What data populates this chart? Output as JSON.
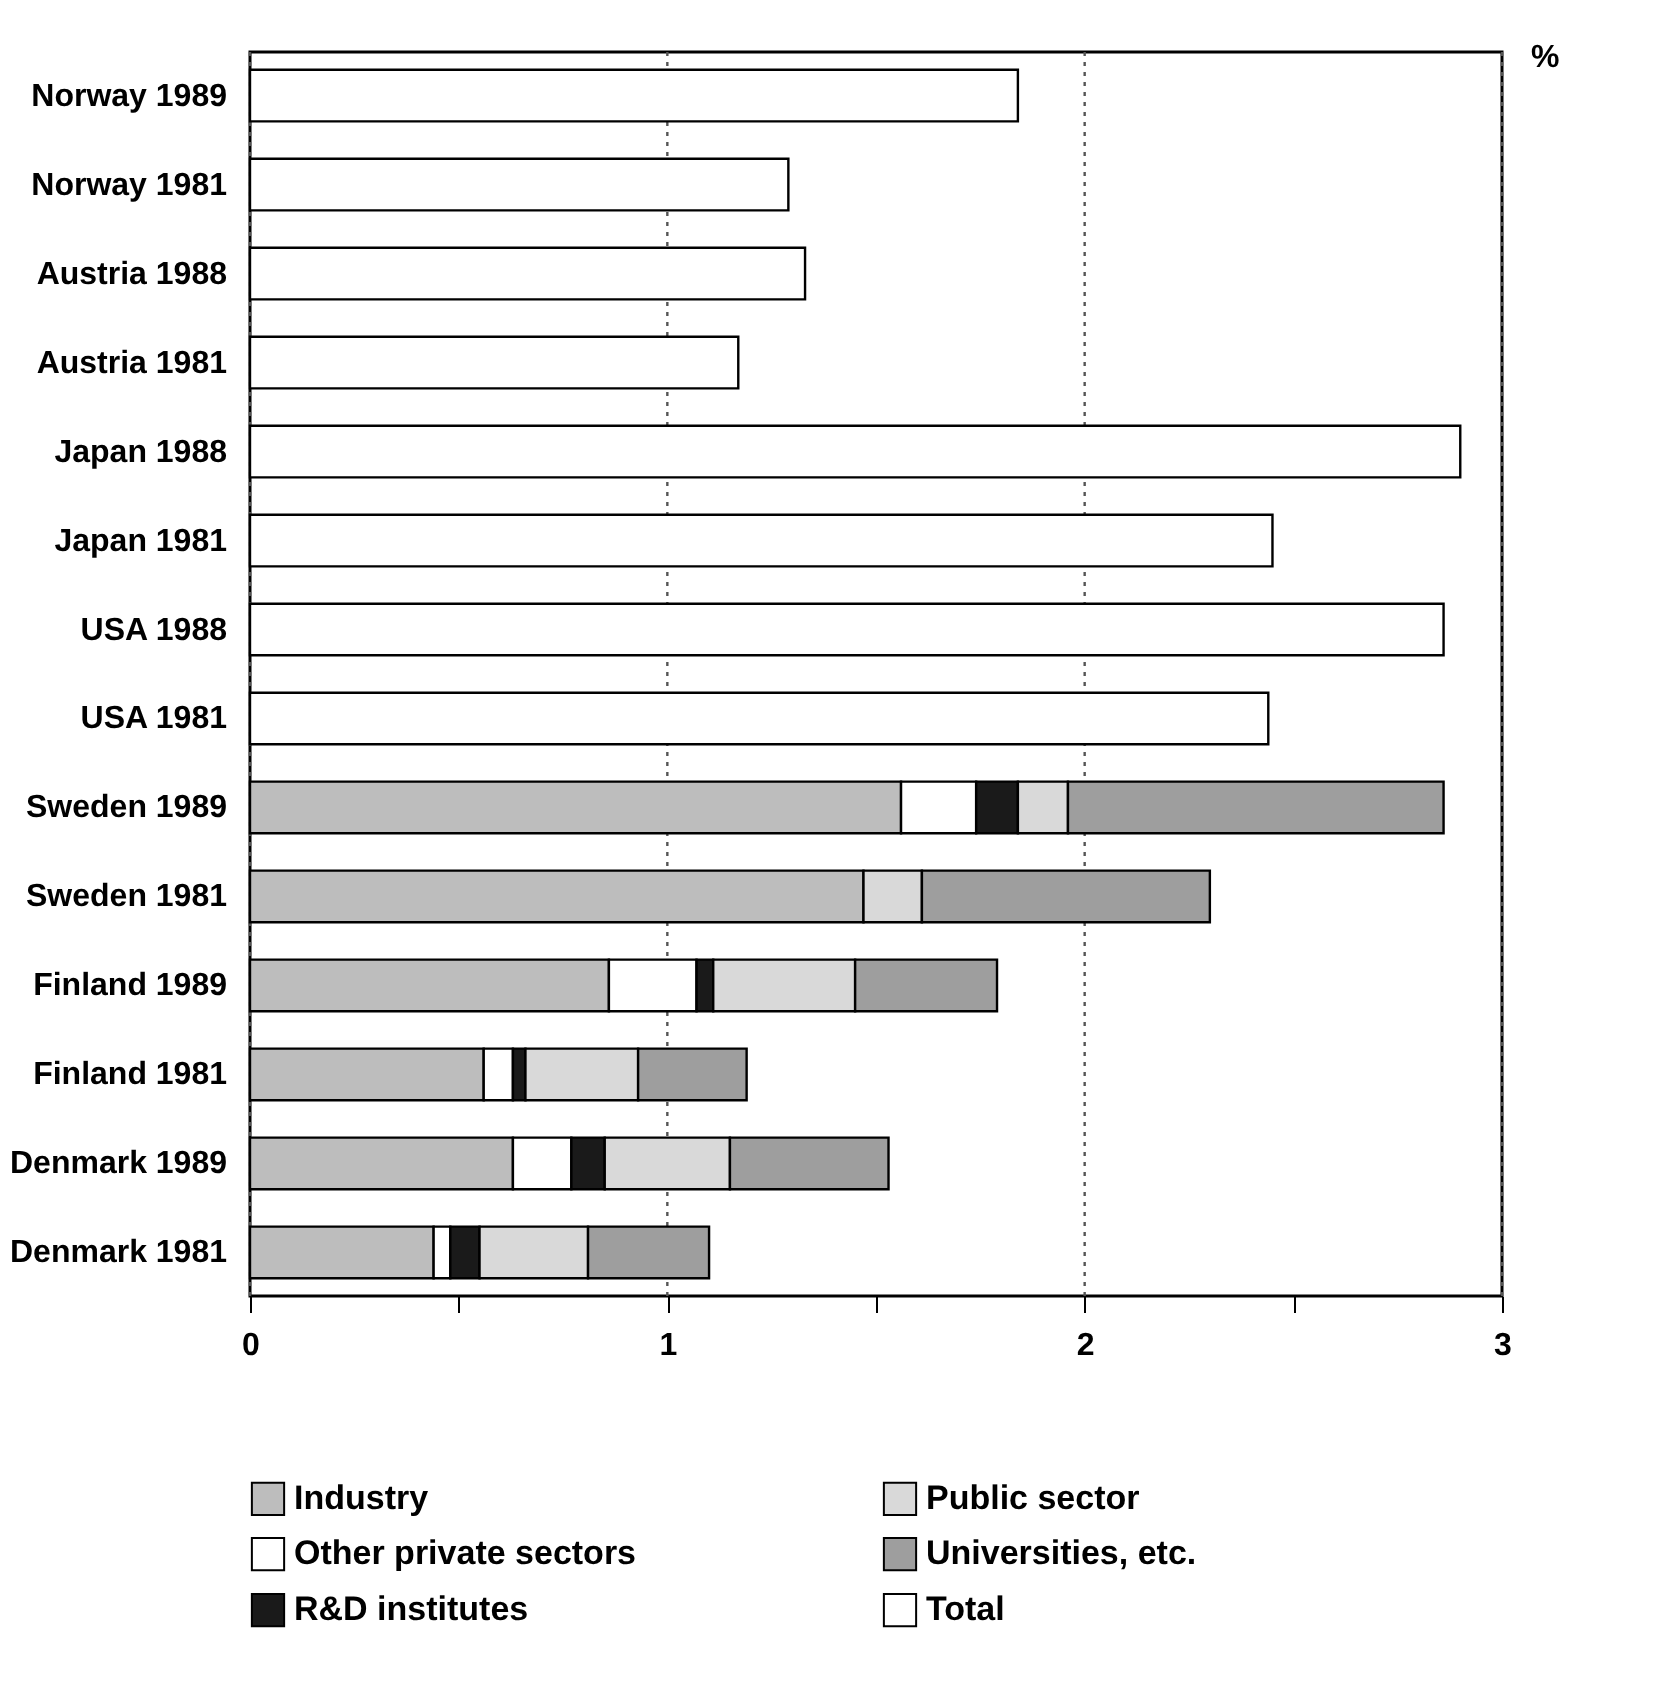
{
  "chart_data": {
    "type": "bar",
    "orientation": "horizontal",
    "stacked": true,
    "xlabel": "%",
    "categories": [
      "Norway 1989",
      "Norway 1981",
      "Austria 1988",
      "Austria 1981",
      "Japan 1988",
      "Japan 1981",
      "USA 1988",
      "USA 1981",
      "Sweden 1989",
      "Sweden 1981",
      "Finland 1989",
      "Finland 1981",
      "Denmark 1989",
      "Denmark 1981"
    ],
    "series": [
      {
        "name": "Industry",
        "color": "#bdbdbd",
        "values": [
          null,
          null,
          null,
          null,
          null,
          null,
          null,
          null,
          1.56,
          1.47,
          0.86,
          0.56,
          0.63,
          0.44
        ]
      },
      {
        "name": "Other private sectors",
        "color": "#ffffff",
        "values": [
          null,
          null,
          null,
          null,
          null,
          null,
          null,
          null,
          0.18,
          null,
          0.21,
          0.07,
          0.14,
          0.04
        ]
      },
      {
        "name": "R&D institutes",
        "color": "#1a1a1a",
        "values": [
          null,
          null,
          null,
          null,
          null,
          null,
          null,
          null,
          0.1,
          null,
          0.04,
          0.03,
          0.08,
          0.07
        ]
      },
      {
        "name": "Public sector",
        "color": "#d9d9d9",
        "values": [
          null,
          null,
          null,
          null,
          null,
          null,
          null,
          null,
          0.12,
          0.14,
          0.34,
          0.27,
          0.3,
          0.26
        ]
      },
      {
        "name": "Universities, etc.",
        "color": "#9e9e9e",
        "values": [
          null,
          null,
          null,
          null,
          null,
          null,
          null,
          null,
          0.9,
          0.69,
          0.34,
          0.26,
          0.38,
          0.29
        ]
      },
      {
        "name": "Total",
        "color": "#ffffff",
        "values": [
          1.84,
          1.29,
          1.33,
          1.17,
          2.9,
          2.45,
          2.86,
          2.44,
          null,
          null,
          null,
          null,
          null,
          null
        ]
      }
    ],
    "xlim": [
      0,
      3
    ],
    "xticks": [
      0,
      {
        "value": 0.5,
        "label": null
      },
      1,
      {
        "value": 1.5,
        "label": null
      },
      2,
      {
        "value": 2.5,
        "label": null
      },
      3
    ],
    "grid": "x",
    "legend": "bottom"
  }
}
